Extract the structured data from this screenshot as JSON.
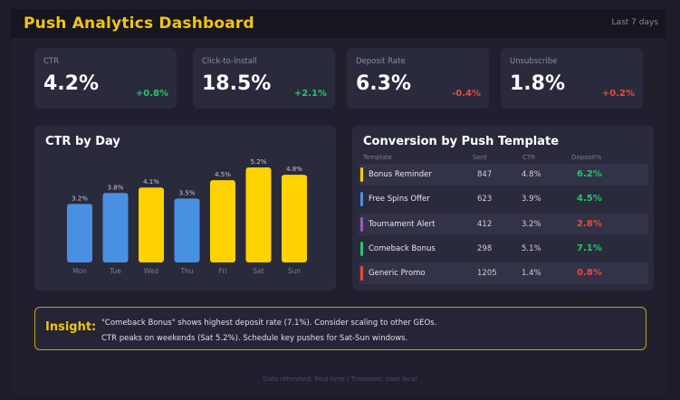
{
  "header": {
    "title": "Push Analytics Dashboard",
    "period": "Last 7 days"
  },
  "kpis": [
    {
      "label": "CTR",
      "value": "4.2%",
      "delta": "+0.8%",
      "trend": "up"
    },
    {
      "label": "Click-to-Install",
      "value": "18.5%",
      "delta": "+2.1%",
      "trend": "up"
    },
    {
      "label": "Deposit Rate",
      "value": "6.3%",
      "delta": "-0.4%",
      "trend": "down"
    },
    {
      "label": "Unsubscribe",
      "value": "1.8%",
      "delta": "+0.2%",
      "trend": "down"
    }
  ],
  "chart_data": {
    "type": "bar",
    "title": "CTR by Day",
    "categories": [
      "Mon",
      "Tue",
      "Wed",
      "Thu",
      "Fri",
      "Sat",
      "Sun"
    ],
    "values": [
      3.2,
      3.8,
      4.1,
      3.5,
      4.5,
      5.2,
      4.8
    ],
    "value_labels": [
      "3.2%",
      "3.8%",
      "4.1%",
      "3.5%",
      "4.5%",
      "5.2%",
      "4.8%"
    ],
    "bar_colors": [
      "#4a90e2",
      "#4a90e2",
      "#ffd200",
      "#4a90e2",
      "#ffd200",
      "#ffd200",
      "#ffd200"
    ],
    "ylim": [
      0,
      5.2
    ],
    "grid": false,
    "legend": "none"
  },
  "conversion": {
    "title": "Conversion by Push Template",
    "columns": [
      "Template",
      "Sent",
      "CTR",
      "Deposit%"
    ],
    "rows": [
      {
        "name": "Bonus Reminder",
        "sent": "847",
        "ctr": "4.8%",
        "deposit": "6.2%",
        "accent": "#ffd200",
        "deposit_color": "#27c46a"
      },
      {
        "name": "Free Spins Offer",
        "sent": "623",
        "ctr": "3.9%",
        "deposit": "4.5%",
        "accent": "#4a90e2",
        "deposit_color": "#27c46a"
      },
      {
        "name": "Tournament Alert",
        "sent": "412",
        "ctr": "3.2%",
        "deposit": "2.8%",
        "accent": "#9b59b6",
        "deposit_color": "#e74c3c"
      },
      {
        "name": "Comeback Bonus",
        "sent": "298",
        "ctr": "5.1%",
        "deposit": "7.1%",
        "accent": "#27c46a",
        "deposit_color": "#27c46a"
      },
      {
        "name": "Generic Promo",
        "sent": "1205",
        "ctr": "1.4%",
        "deposit": "0.8%",
        "accent": "#e74c3c",
        "deposit_color": "#e74c3c"
      }
    ]
  },
  "insight": {
    "label": "Insight:",
    "line1": "\"Comeback Bonus\" shows highest deposit rate (7.1%). Consider scaling to other GEOs.",
    "line2": "CTR peaks on weekends (Sat 5.2%). Schedule key pushes for Sat-Sun windows."
  },
  "footer": {
    "text": "Data refreshed: Real-time | Timezone: User local"
  },
  "colors": {
    "accent": "#f2c40f",
    "positive": "#27c46a",
    "negative": "#e74c3c"
  }
}
